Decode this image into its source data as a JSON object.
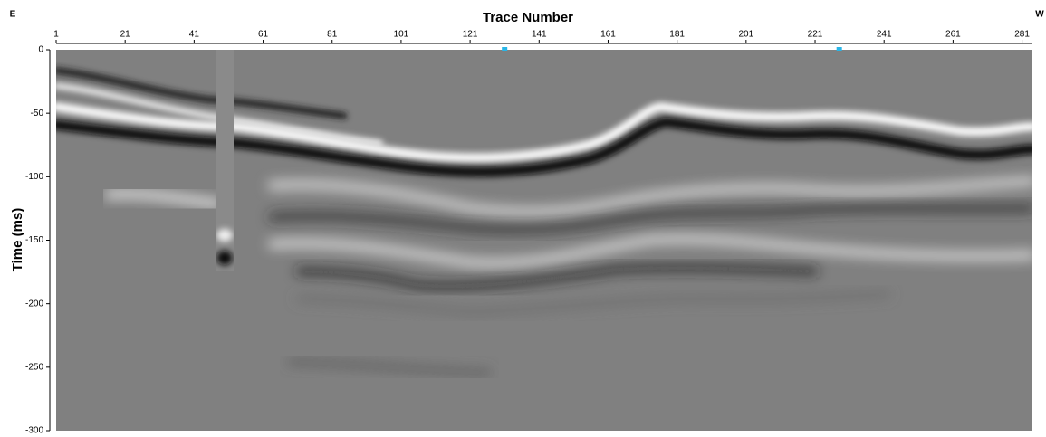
{
  "chart_data": {
    "type": "seismic-section",
    "corner_left": "E",
    "corner_right": "W",
    "x_label": "Trace Number",
    "y_label": "Time (ms)",
    "xlim": [
      1,
      284
    ],
    "xticks": [
      1,
      21,
      41,
      61,
      81,
      101,
      121,
      141,
      161,
      181,
      201,
      221,
      241,
      261,
      281
    ],
    "ylim": [
      0,
      -300
    ],
    "yticks": [
      0,
      -50,
      -100,
      -150,
      -200,
      -250,
      -300
    ],
    "markers": [
      131,
      228
    ],
    "marker_color": "#29b6e8"
  }
}
